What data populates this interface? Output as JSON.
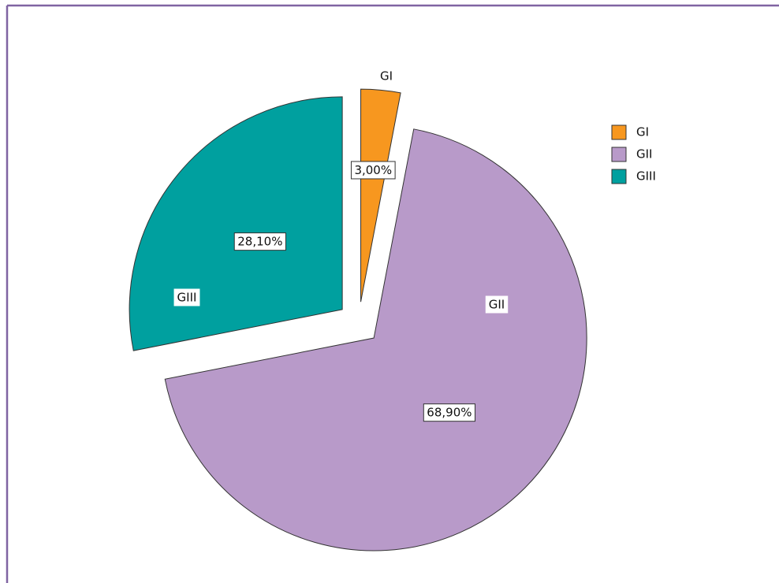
{
  "chart_data": {
    "type": "pie",
    "categories": [
      "GI",
      "GII",
      "GIII"
    ],
    "values": [
      3,
      68.9,
      28.1
    ],
    "value_labels": [
      "3,00%",
      "68,90%",
      "28,10%"
    ],
    "colors": [
      "#f7971f",
      "#b89ac9",
      "#00a09f"
    ],
    "legend": "top-right"
  }
}
